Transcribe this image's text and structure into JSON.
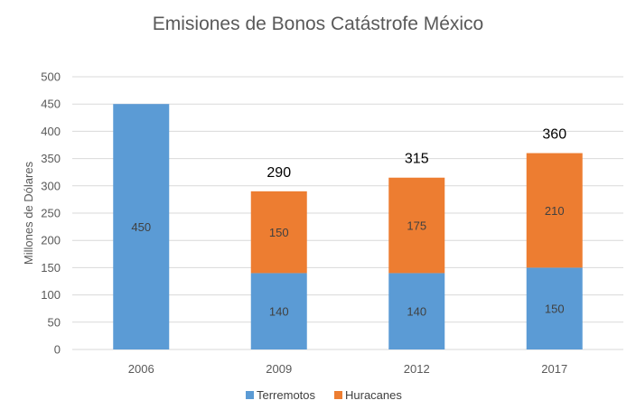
{
  "chart_data": {
    "type": "bar",
    "stacked": true,
    "title": "Emisiones de Bonos Catástrofe México",
    "xlabel": "",
    "ylabel": "Millones de Dólares",
    "ylim": [
      0,
      500
    ],
    "yticks": [
      0,
      50,
      100,
      150,
      200,
      250,
      300,
      350,
      400,
      450,
      500
    ],
    "categories": [
      "2006",
      "2009",
      "2012",
      "2017"
    ],
    "series": [
      {
        "name": "Terremotos",
        "values": [
          450,
          140,
          140,
          150
        ],
        "color": "#5b9bd5"
      },
      {
        "name": "Huracanes",
        "values": [
          null,
          150,
          175,
          210
        ],
        "color": "#ed7d31"
      }
    ],
    "totals": [
      null,
      290,
      315,
      360
    ],
    "grid": true,
    "legend_position": "bottom"
  }
}
